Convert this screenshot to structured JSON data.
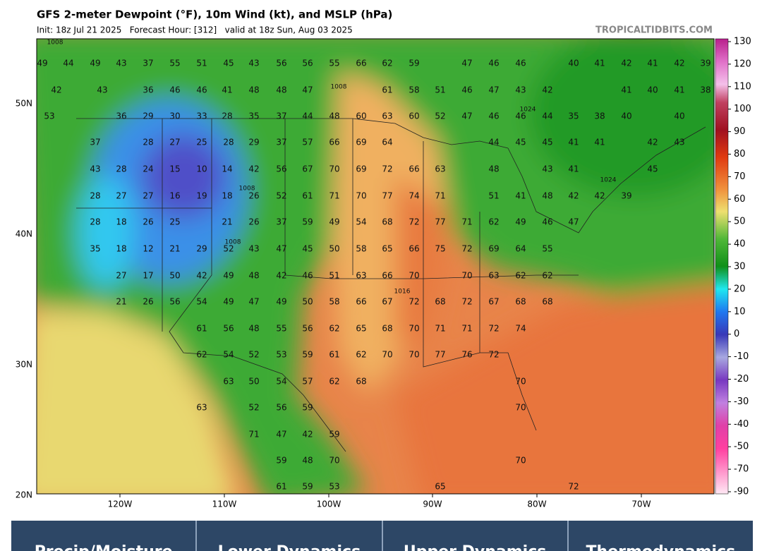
{
  "header": {
    "title": "GFS 2-meter Dewpoint (°F), 10m Wind (kt), and MSLP (hPa)",
    "subtitle": "Init: 18z Jul 21 2025   Forecast Hour: [312]   valid at 18z Sun, Aug 03 2025",
    "site": "TROPICALTIDBITS.COM"
  },
  "colorbar": {
    "ticks": [
      130,
      120,
      110,
      100,
      90,
      80,
      70,
      60,
      50,
      40,
      30,
      20,
      10,
      0,
      -10,
      -20,
      -30,
      -40,
      -50,
      -70,
      -90
    ]
  },
  "longitude_labels": [
    "120W",
    "110W",
    "100W",
    "90W",
    "80W",
    "70W"
  ],
  "latitude_labels": [
    "50N",
    "40N",
    "30N",
    "20N"
  ],
  "isobar_labels": [
    "1008",
    "1008",
    "1008",
    "1016",
    "1024",
    "1024",
    "1008"
  ],
  "dewpoint_rows": [
    [
      49,
      44,
      49,
      43,
      37,
      55,
      51,
      45,
      43,
      56,
      56,
      55,
      66,
      62,
      59,
      47,
      46,
      46,
      40,
      41,
      42,
      41,
      42,
      39
    ],
    [
      42,
      43,
      36,
      46,
      46,
      41,
      48,
      48,
      47,
      61,
      58,
      51,
      46,
      47,
      43,
      42,
      41,
      40,
      41,
      38
    ],
    [
      53,
      36,
      29,
      30,
      33,
      28,
      35,
      37,
      44,
      48,
      60,
      63,
      60,
      52,
      47,
      46,
      46,
      44,
      35,
      38,
      40,
      40
    ],
    [
      37,
      28,
      27,
      25,
      28,
      29,
      37,
      57,
      66,
      69,
      64,
      44,
      45,
      45,
      41,
      41,
      42,
      43
    ],
    [
      43,
      28,
      24,
      15,
      10,
      14,
      42,
      56,
      67,
      70,
      69,
      72,
      66,
      63,
      48,
      43,
      41,
      45
    ],
    [
      28,
      27,
      27,
      16,
      19,
      18,
      26,
      52,
      61,
      71,
      70,
      77,
      74,
      71,
      51,
      41,
      48,
      42,
      42,
      39
    ],
    [
      28,
      18,
      26,
      25,
      21,
      26,
      37,
      59,
      49,
      54,
      68,
      72,
      77,
      71,
      62,
      49,
      46,
      47
    ],
    [
      35,
      18,
      12,
      21,
      29,
      52,
      43,
      47,
      45,
      50,
      58,
      65,
      66,
      75,
      72,
      69,
      64,
      55
    ],
    [
      27,
      17,
      50,
      42,
      49,
      48,
      42,
      46,
      51,
      63,
      66,
      70,
      70,
      63,
      62,
      62
    ],
    [
      21,
      26,
      56,
      54,
      49,
      47,
      49,
      50,
      58,
      66,
      67,
      72,
      68,
      72,
      67,
      68,
      68
    ],
    [
      61,
      56,
      48,
      55,
      56,
      62,
      65,
      68,
      70,
      71,
      71,
      72,
      74
    ],
    [
      62,
      54,
      52,
      53,
      59,
      61,
      62,
      70,
      70,
      77,
      76,
      72
    ],
    [
      63,
      50,
      54,
      57,
      62,
      68,
      70
    ],
    [
      63,
      52,
      56,
      59,
      70
    ],
    [
      71,
      47,
      42,
      59
    ],
    [
      59,
      48,
      70,
      70
    ],
    [
      61,
      59,
      53,
      65,
      72
    ]
  ],
  "tabs": [
    "Precip/Moisture",
    "Lower Dynamics",
    "Upper Dynamics",
    "Thermodynamics"
  ]
}
